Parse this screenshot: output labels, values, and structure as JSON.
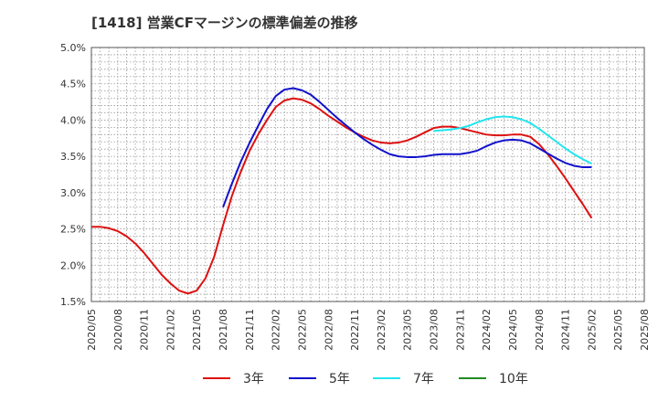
{
  "chart_data": {
    "type": "line",
    "title": "[1418]  営業CFマージンの標準偏差の推移",
    "xlabel": "",
    "ylabel": "",
    "ylim": [
      1.5,
      5.0
    ],
    "y_ticks": [
      "5.0%",
      "4.5%",
      "4.0%",
      "3.5%",
      "3.0%",
      "2.5%",
      "2.0%",
      "1.5%"
    ],
    "y_tick_values": [
      5.0,
      4.5,
      4.0,
      3.5,
      3.0,
      2.5,
      2.0,
      1.5
    ],
    "x_ticks": [
      "2020/05",
      "2020/08",
      "2020/11",
      "2021/02",
      "2021/05",
      "2021/08",
      "2021/11",
      "2022/02",
      "2022/05",
      "2022/08",
      "2022/11",
      "2023/02",
      "2023/05",
      "2023/08",
      "2023/11",
      "2024/02",
      "2024/05",
      "2024/08",
      "2024/11",
      "2025/02",
      "2025/05",
      "2025/08"
    ],
    "x_range": [
      "2020/05",
      "2025/08"
    ],
    "grid": true,
    "legend_position": "bottom",
    "series": [
      {
        "name": "3年",
        "color": "#dd1111",
        "points": [
          [
            "2020/05",
            2.53
          ],
          [
            "2020/06",
            2.53
          ],
          [
            "2020/07",
            2.51
          ],
          [
            "2020/08",
            2.47
          ],
          [
            "2020/09",
            2.4
          ],
          [
            "2020/10",
            2.3
          ],
          [
            "2020/11",
            2.17
          ],
          [
            "2020/12",
            2.02
          ],
          [
            "2021/01",
            1.87
          ],
          [
            "2021/02",
            1.75
          ],
          [
            "2021/03",
            1.65
          ],
          [
            "2021/04",
            1.61
          ],
          [
            "2021/05",
            1.65
          ],
          [
            "2021/06",
            1.82
          ],
          [
            "2021/07",
            2.12
          ],
          [
            "2021/08",
            2.55
          ],
          [
            "2021/09",
            2.95
          ],
          [
            "2021/10",
            3.28
          ],
          [
            "2021/11",
            3.57
          ],
          [
            "2021/12",
            3.8
          ],
          [
            "2022/01",
            4.0
          ],
          [
            "2022/02",
            4.18
          ],
          [
            "2022/03",
            4.27
          ],
          [
            "2022/04",
            4.3
          ],
          [
            "2022/05",
            4.28
          ],
          [
            "2022/06",
            4.23
          ],
          [
            "2022/07",
            4.15
          ],
          [
            "2022/08",
            4.06
          ],
          [
            "2022/09",
            3.98
          ],
          [
            "2022/10",
            3.9
          ],
          [
            "2022/11",
            3.83
          ],
          [
            "2022/12",
            3.77
          ],
          [
            "2023/01",
            3.72
          ],
          [
            "2023/02",
            3.69
          ],
          [
            "2023/03",
            3.68
          ],
          [
            "2023/04",
            3.69
          ],
          [
            "2023/05",
            3.72
          ],
          [
            "2023/06",
            3.77
          ],
          [
            "2023/07",
            3.83
          ],
          [
            "2023/08",
            3.89
          ],
          [
            "2023/09",
            3.91
          ],
          [
            "2023/10",
            3.91
          ],
          [
            "2023/11",
            3.89
          ],
          [
            "2023/12",
            3.86
          ],
          [
            "2024/01",
            3.83
          ],
          [
            "2024/02",
            3.8
          ],
          [
            "2024/03",
            3.79
          ],
          [
            "2024/04",
            3.79
          ],
          [
            "2024/05",
            3.8
          ],
          [
            "2024/06",
            3.8
          ],
          [
            "2024/07",
            3.77
          ],
          [
            "2024/08",
            3.67
          ],
          [
            "2024/09",
            3.53
          ],
          [
            "2024/10",
            3.37
          ],
          [
            "2024/11",
            3.2
          ],
          [
            "2024/12",
            3.02
          ],
          [
            "2025/01",
            2.84
          ],
          [
            "2025/02",
            2.65
          ]
        ]
      },
      {
        "name": "5年",
        "color": "#1111cc",
        "points": [
          [
            "2021/08",
            2.8
          ],
          [
            "2021/09",
            3.12
          ],
          [
            "2021/10",
            3.42
          ],
          [
            "2021/11",
            3.68
          ],
          [
            "2021/12",
            3.92
          ],
          [
            "2022/01",
            4.15
          ],
          [
            "2022/02",
            4.33
          ],
          [
            "2022/03",
            4.42
          ],
          [
            "2022/04",
            4.44
          ],
          [
            "2022/05",
            4.41
          ],
          [
            "2022/06",
            4.35
          ],
          [
            "2022/07",
            4.25
          ],
          [
            "2022/08",
            4.14
          ],
          [
            "2022/09",
            4.03
          ],
          [
            "2022/10",
            3.93
          ],
          [
            "2022/11",
            3.83
          ],
          [
            "2022/12",
            3.74
          ],
          [
            "2023/01",
            3.66
          ],
          [
            "2023/02",
            3.59
          ],
          [
            "2023/03",
            3.53
          ],
          [
            "2023/04",
            3.5
          ],
          [
            "2023/05",
            3.49
          ],
          [
            "2023/06",
            3.49
          ],
          [
            "2023/07",
            3.5
          ],
          [
            "2023/08",
            3.52
          ],
          [
            "2023/09",
            3.53
          ],
          [
            "2023/10",
            3.53
          ],
          [
            "2023/11",
            3.53
          ],
          [
            "2023/12",
            3.55
          ],
          [
            "2024/01",
            3.58
          ],
          [
            "2024/02",
            3.64
          ],
          [
            "2024/03",
            3.69
          ],
          [
            "2024/04",
            3.72
          ],
          [
            "2024/05",
            3.73
          ],
          [
            "2024/06",
            3.72
          ],
          [
            "2024/07",
            3.68
          ],
          [
            "2024/08",
            3.61
          ],
          [
            "2024/09",
            3.54
          ],
          [
            "2024/10",
            3.47
          ],
          [
            "2024/11",
            3.41
          ],
          [
            "2024/12",
            3.37
          ],
          [
            "2025/01",
            3.35
          ],
          [
            "2025/02",
            3.35
          ]
        ]
      },
      {
        "name": "7年",
        "color": "#22e5ee",
        "points": [
          [
            "2023/08",
            3.85
          ],
          [
            "2023/09",
            3.86
          ],
          [
            "2023/10",
            3.87
          ],
          [
            "2023/11",
            3.89
          ],
          [
            "2023/12",
            3.92
          ],
          [
            "2024/01",
            3.97
          ],
          [
            "2024/02",
            4.01
          ],
          [
            "2024/03",
            4.04
          ],
          [
            "2024/04",
            4.05
          ],
          [
            "2024/05",
            4.04
          ],
          [
            "2024/06",
            4.01
          ],
          [
            "2024/07",
            3.96
          ],
          [
            "2024/08",
            3.88
          ],
          [
            "2024/09",
            3.79
          ],
          [
            "2024/10",
            3.7
          ],
          [
            "2024/11",
            3.61
          ],
          [
            "2024/12",
            3.53
          ],
          [
            "2025/01",
            3.46
          ],
          [
            "2025/02",
            3.4
          ]
        ]
      },
      {
        "name": "10年",
        "color": "#228b22",
        "points": []
      }
    ]
  }
}
